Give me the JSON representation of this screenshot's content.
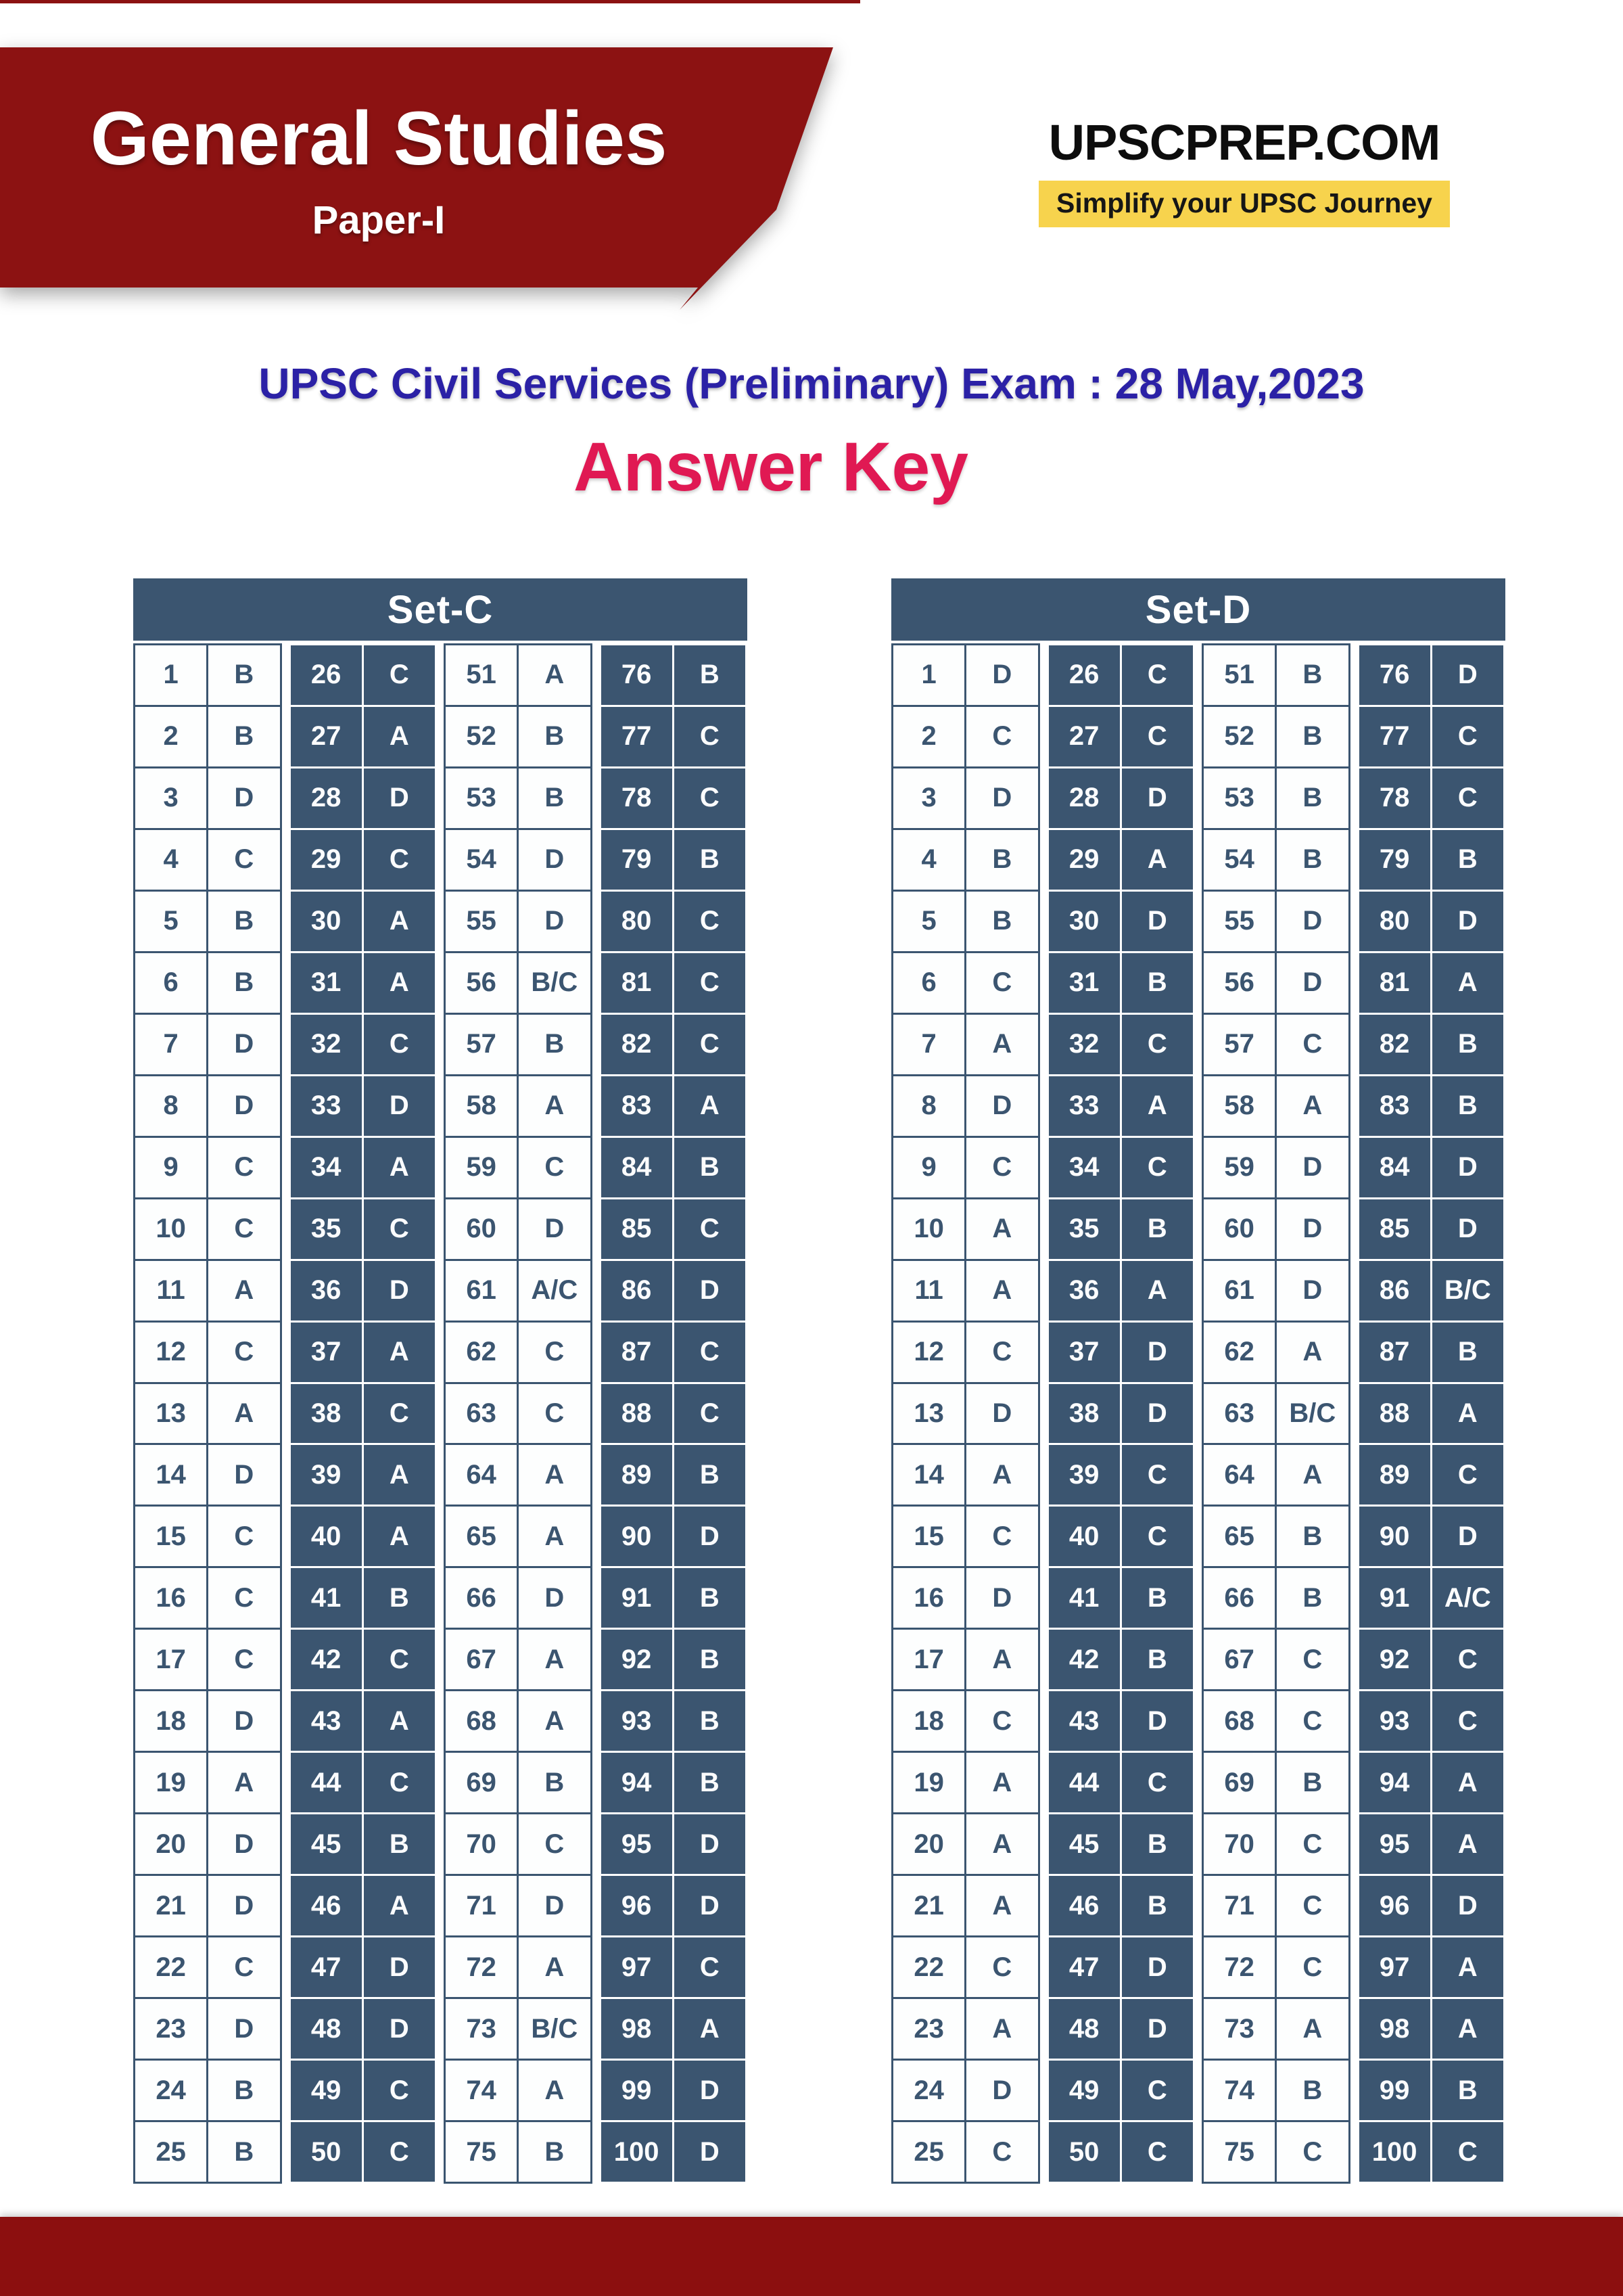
{
  "banner": {
    "title": "General Studies",
    "subtitle": "Paper-I"
  },
  "logo": {
    "brand": "UPSCPREP.COM",
    "tagline": "Simplify your UPSC Journey"
  },
  "heading": {
    "exam_line": "UPSC Civil Services (Preliminary) Exam : 28 May,2023",
    "page_title": "Answer Key"
  },
  "colors": {
    "banner_red": "#8C1212",
    "footer_red": "#8C0F0F",
    "table_dark": "#3B5570",
    "accent_blue": "#2B21A6",
    "accent_crimson": "#E01953",
    "tagline_yellow": "#F7D34D"
  },
  "answer_keys": [
    {
      "set_name": "Set-C",
      "groups": [
        {
          "start": 1,
          "answers": [
            "B",
            "B",
            "D",
            "C",
            "B",
            "B",
            "D",
            "D",
            "C",
            "C",
            "A",
            "C",
            "A",
            "D",
            "C",
            "C",
            "C",
            "D",
            "A",
            "D",
            "D",
            "C",
            "D",
            "B",
            "B"
          ]
        },
        {
          "start": 26,
          "answers": [
            "C",
            "A",
            "D",
            "C",
            "A",
            "A",
            "C",
            "D",
            "A",
            "C",
            "D",
            "A",
            "C",
            "A",
            "A",
            "B",
            "C",
            "A",
            "C",
            "B",
            "A",
            "D",
            "D",
            "C",
            "C"
          ]
        },
        {
          "start": 51,
          "answers": [
            "A",
            "B",
            "B",
            "D",
            "D",
            "B/C",
            "B",
            "A",
            "C",
            "D",
            "A/C",
            "C",
            "C",
            "A",
            "A",
            "D",
            "A",
            "A",
            "B",
            "C",
            "D",
            "A",
            "B/C",
            "A",
            "B"
          ]
        },
        {
          "start": 76,
          "answers": [
            "B",
            "C",
            "C",
            "B",
            "C",
            "C",
            "C",
            "A",
            "B",
            "C",
            "D",
            "C",
            "C",
            "B",
            "D",
            "B",
            "B",
            "B",
            "B",
            "D",
            "D",
            "C",
            "A",
            "D",
            "D"
          ]
        }
      ]
    },
    {
      "set_name": "Set-D",
      "groups": [
        {
          "start": 1,
          "answers": [
            "D",
            "C",
            "D",
            "B",
            "B",
            "C",
            "A",
            "D",
            "C",
            "A",
            "A",
            "C",
            "D",
            "A",
            "C",
            "D",
            "A",
            "C",
            "A",
            "A",
            "A",
            "C",
            "A",
            "D",
            "C"
          ]
        },
        {
          "start": 26,
          "answers": [
            "C",
            "C",
            "D",
            "A",
            "D",
            "B",
            "C",
            "A",
            "C",
            "B",
            "A",
            "D",
            "D",
            "C",
            "C",
            "B",
            "B",
            "D",
            "C",
            "B",
            "B",
            "D",
            "D",
            "C",
            "C"
          ]
        },
        {
          "start": 51,
          "answers": [
            "B",
            "B",
            "B",
            "B",
            "D",
            "D",
            "C",
            "A",
            "D",
            "D",
            "D",
            "A",
            "B/C",
            "A",
            "B",
            "B",
            "C",
            "C",
            "B",
            "C",
            "C",
            "C",
            "A",
            "B",
            "C"
          ]
        },
        {
          "start": 76,
          "answers": [
            "D",
            "C",
            "C",
            "B",
            "D",
            "A",
            "B",
            "B",
            "D",
            "D",
            "B/C",
            "B",
            "A",
            "C",
            "D",
            "A/C",
            "C",
            "C",
            "A",
            "A",
            "D",
            "A",
            "A",
            "B",
            "C"
          ]
        }
      ]
    }
  ]
}
